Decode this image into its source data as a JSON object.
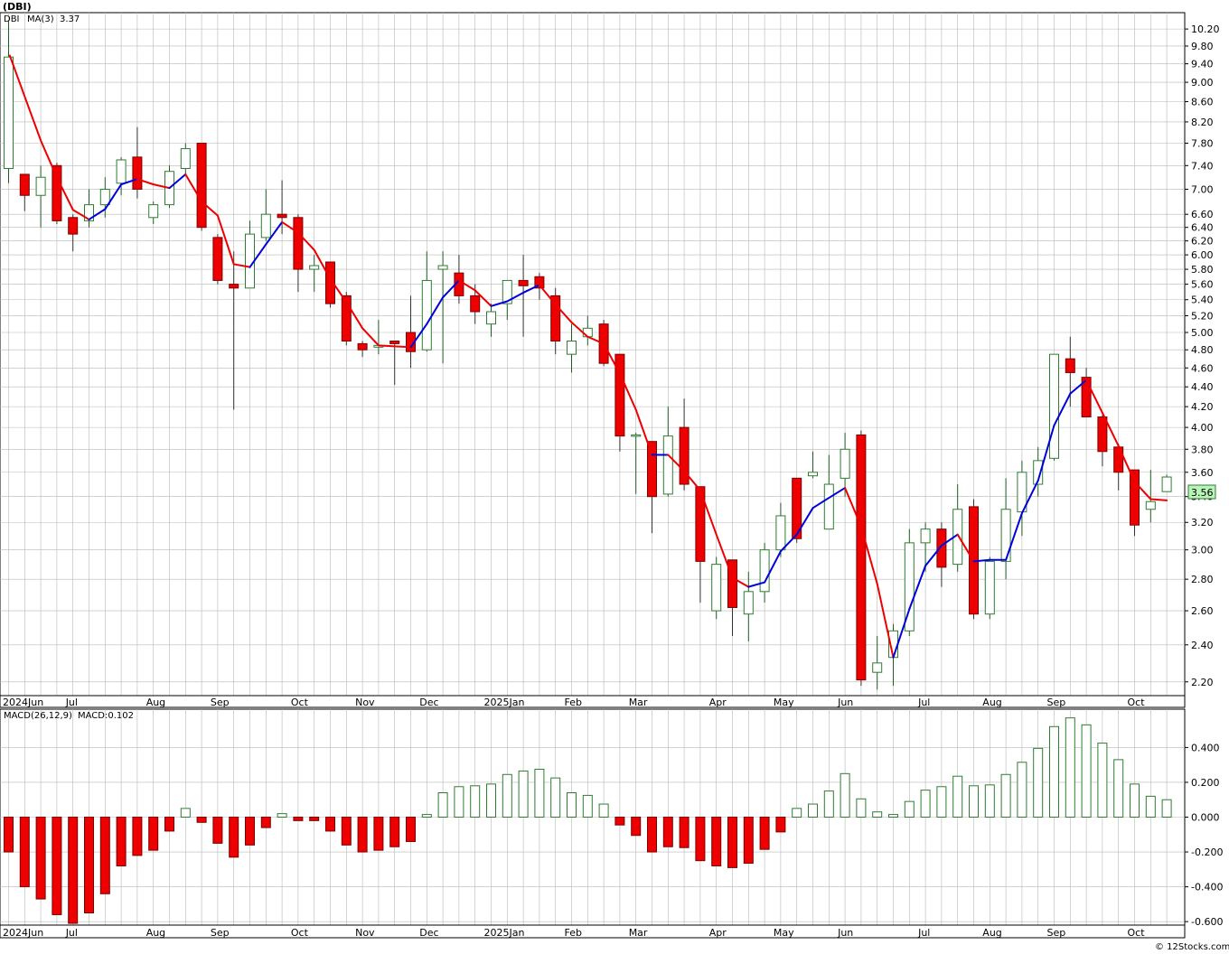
{
  "ticker_title": "(DBI)",
  "legend": {
    "symbol": "DBI",
    "ma_label": "MA(3)",
    "ma_value": "3.37",
    "macd_label": "MACD(26,12,9)",
    "macd_value": "MACD:0.102"
  },
  "last_price_tag": "3.56",
  "watermark": "© 12Stocks.com",
  "colors": {
    "up_candle": "#2e7d32",
    "down_candle": "#ee0000",
    "ma_up": "#0000dd",
    "ma_down": "#ee0000",
    "grid": "#b8b8b8",
    "price_tag": "#b9f5b9"
  },
  "chart_data": [
    {
      "type": "candlestick",
      "title": "(DBI)",
      "y_scale": "log",
      "ylim": [
        2.13,
        10.6
      ],
      "y_ticks": [
        "10.20",
        "9.80",
        "9.40",
        "9.00",
        "8.60",
        "8.20",
        "7.80",
        "7.40",
        "7.00",
        "6.60",
        "6.40",
        "6.20",
        "6.00",
        "5.80",
        "5.60",
        "5.40",
        "5.20",
        "5.00",
        "4.80",
        "4.60",
        "4.40",
        "4.20",
        "4.00",
        "3.80",
        "3.60",
        "3.40",
        "3.20",
        "3.00",
        "2.80",
        "2.60",
        "2.40",
        "2.20"
      ],
      "x_labels": [
        "2024Jun",
        "Jul",
        "Aug",
        "Sep",
        "Oct",
        "Nov",
        "Dec",
        "2025Jan",
        "Feb",
        "Mar",
        "Apr",
        "May",
        "Jun",
        "Jul",
        "Aug",
        "Sep",
        "Oct"
      ],
      "x_label_weeks": [
        0,
        4,
        9,
        13,
        18,
        22,
        26,
        30,
        35,
        39,
        44,
        48,
        52,
        57,
        61,
        65,
        70
      ],
      "candles": [
        {
          "o": 7.35,
          "h": 10.4,
          "l": 7.1,
          "c": 9.55
        },
        {
          "o": 7.25,
          "h": 7.25,
          "l": 6.65,
          "c": 6.9
        },
        {
          "o": 6.9,
          "h": 7.4,
          "l": 6.4,
          "c": 7.2
        },
        {
          "o": 7.4,
          "h": 7.45,
          "l": 6.45,
          "c": 6.5
        },
        {
          "o": 6.55,
          "h": 6.6,
          "l": 6.05,
          "c": 6.3
        },
        {
          "o": 6.5,
          "h": 7.0,
          "l": 6.4,
          "c": 6.75
        },
        {
          "o": 6.75,
          "h": 7.2,
          "l": 6.55,
          "c": 7.0
        },
        {
          "o": 7.1,
          "h": 7.55,
          "l": 6.9,
          "c": 7.5
        },
        {
          "o": 7.55,
          "h": 8.1,
          "l": 6.85,
          "c": 7.0
        },
        {
          "o": 6.55,
          "h": 6.8,
          "l": 6.45,
          "c": 6.75
        },
        {
          "o": 6.75,
          "h": 7.4,
          "l": 6.7,
          "c": 7.3
        },
        {
          "o": 7.35,
          "h": 7.8,
          "l": 7.25,
          "c": 7.7
        },
        {
          "o": 7.8,
          "h": 7.8,
          "l": 6.35,
          "c": 6.4
        },
        {
          "o": 6.25,
          "h": 6.3,
          "l": 5.6,
          "c": 5.65
        },
        {
          "o": 5.6,
          "h": 6.05,
          "l": 4.17,
          "c": 5.55
        },
        {
          "o": 5.55,
          "h": 6.5,
          "l": 5.55,
          "c": 6.3
        },
        {
          "o": 6.25,
          "h": 7.0,
          "l": 6.2,
          "c": 6.6
        },
        {
          "o": 6.6,
          "h": 7.15,
          "l": 6.3,
          "c": 6.55
        },
        {
          "o": 6.55,
          "h": 6.6,
          "l": 5.5,
          "c": 5.8
        },
        {
          "o": 5.8,
          "h": 6.0,
          "l": 5.5,
          "c": 5.85
        },
        {
          "o": 5.9,
          "h": 5.9,
          "l": 5.3,
          "c": 5.35
        },
        {
          "o": 5.45,
          "h": 5.5,
          "l": 4.85,
          "c": 4.9
        },
        {
          "o": 4.87,
          "h": 4.9,
          "l": 4.72,
          "c": 4.8
        },
        {
          "o": 4.83,
          "h": 5.15,
          "l": 4.75,
          "c": 4.85
        },
        {
          "o": 4.9,
          "h": 4.9,
          "l": 4.42,
          "c": 4.87
        },
        {
          "o": 5.0,
          "h": 5.45,
          "l": 4.6,
          "c": 4.78
        },
        {
          "o": 4.8,
          "h": 6.05,
          "l": 4.78,
          "c": 5.65
        },
        {
          "o": 5.8,
          "h": 6.05,
          "l": 4.65,
          "c": 5.85
        },
        {
          "o": 5.75,
          "h": 6.0,
          "l": 5.35,
          "c": 5.45
        },
        {
          "o": 5.45,
          "h": 5.6,
          "l": 5.1,
          "c": 5.25
        },
        {
          "o": 5.1,
          "h": 5.35,
          "l": 4.95,
          "c": 5.25
        },
        {
          "o": 5.35,
          "h": 5.65,
          "l": 5.15,
          "c": 5.65
        },
        {
          "o": 5.65,
          "h": 6.0,
          "l": 4.95,
          "c": 5.58
        },
        {
          "o": 5.7,
          "h": 5.75,
          "l": 5.4,
          "c": 5.55
        },
        {
          "o": 5.45,
          "h": 5.55,
          "l": 4.75,
          "c": 4.9
        },
        {
          "o": 4.75,
          "h": 5.1,
          "l": 4.55,
          "c": 4.9
        },
        {
          "o": 4.95,
          "h": 5.2,
          "l": 4.85,
          "c": 5.05
        },
        {
          "o": 5.1,
          "h": 5.15,
          "l": 4.62,
          "c": 4.65
        },
        {
          "o": 4.75,
          "h": 4.75,
          "l": 3.78,
          "c": 3.92
        },
        {
          "o": 3.92,
          "h": 3.95,
          "l": 3.42,
          "c": 3.93
        },
        {
          "o": 3.87,
          "h": 3.87,
          "l": 3.12,
          "c": 3.4
        },
        {
          "o": 3.42,
          "h": 4.2,
          "l": 3.4,
          "c": 3.92
        },
        {
          "o": 4.0,
          "h": 4.28,
          "l": 3.45,
          "c": 3.5
        },
        {
          "o": 3.48,
          "h": 3.48,
          "l": 2.65,
          "c": 2.92
        },
        {
          "o": 2.6,
          "h": 2.95,
          "l": 2.55,
          "c": 2.9
        },
        {
          "o": 2.93,
          "h": 2.93,
          "l": 2.45,
          "c": 2.62
        },
        {
          "o": 2.58,
          "h": 2.85,
          "l": 2.42,
          "c": 2.72
        },
        {
          "o": 2.72,
          "h": 3.05,
          "l": 2.65,
          "c": 3.0
        },
        {
          "o": 3.0,
          "h": 3.35,
          "l": 2.95,
          "c": 3.25
        },
        {
          "o": 3.55,
          "h": 3.55,
          "l": 3.05,
          "c": 3.08
        },
        {
          "o": 3.57,
          "h": 3.78,
          "l": 3.55,
          "c": 3.6
        },
        {
          "o": 3.15,
          "h": 3.75,
          "l": 3.15,
          "c": 3.5
        },
        {
          "o": 3.55,
          "h": 3.95,
          "l": 3.4,
          "c": 3.8
        },
        {
          "o": 3.93,
          "h": 3.97,
          "l": 2.18,
          "c": 2.21
        },
        {
          "o": 2.25,
          "h": 2.45,
          "l": 2.16,
          "c": 2.3
        },
        {
          "o": 2.33,
          "h": 2.52,
          "l": 2.18,
          "c": 2.48
        },
        {
          "o": 2.48,
          "h": 3.15,
          "l": 2.45,
          "c": 3.05
        },
        {
          "o": 3.05,
          "h": 3.2,
          "l": 2.85,
          "c": 3.15
        },
        {
          "o": 3.15,
          "h": 3.2,
          "l": 2.75,
          "c": 2.88
        },
        {
          "o": 2.9,
          "h": 3.5,
          "l": 2.85,
          "c": 3.3
        },
        {
          "o": 3.32,
          "h": 3.38,
          "l": 2.55,
          "c": 2.58
        },
        {
          "o": 2.58,
          "h": 2.95,
          "l": 2.55,
          "c": 2.92
        },
        {
          "o": 2.92,
          "h": 3.55,
          "l": 2.8,
          "c": 3.3
        },
        {
          "o": 3.28,
          "h": 3.7,
          "l": 3.1,
          "c": 3.6
        },
        {
          "o": 3.5,
          "h": 3.82,
          "l": 3.4,
          "c": 3.7
        },
        {
          "o": 3.72,
          "h": 4.75,
          "l": 3.7,
          "c": 4.75
        },
        {
          "o": 4.7,
          "h": 4.95,
          "l": 4.2,
          "c": 4.55
        },
        {
          "o": 4.5,
          "h": 4.6,
          "l": 4.1,
          "c": 4.1
        },
        {
          "o": 4.1,
          "h": 4.12,
          "l": 3.65,
          "c": 3.78
        },
        {
          "o": 3.82,
          "h": 3.85,
          "l": 3.45,
          "c": 3.6
        },
        {
          "o": 3.62,
          "h": 3.62,
          "l": 3.1,
          "c": 3.18
        },
        {
          "o": 3.3,
          "h": 3.62,
          "l": 3.2,
          "c": 3.36
        },
        {
          "o": 3.44,
          "h": 3.58,
          "l": 3.44,
          "c": 3.56
        }
      ],
      "ma3": [
        null,
        null,
        7.85,
        7.2,
        6.67,
        6.52,
        6.68,
        7.08,
        7.17,
        7.08,
        7.02,
        7.25,
        6.8,
        6.58,
        5.87,
        5.83,
        6.15,
        6.48,
        6.32,
        6.07,
        5.67,
        5.37,
        5.05,
        4.85,
        4.84,
        4.83,
        5.1,
        5.43,
        5.65,
        5.52,
        5.32,
        5.38,
        5.49,
        5.59,
        5.34,
        5.12,
        4.95,
        4.87,
        4.54,
        4.17,
        3.75,
        3.75,
        3.61,
        3.45,
        3.11,
        2.81,
        2.75,
        2.78,
        2.99,
        3.11,
        3.31,
        3.39,
        3.47,
        3.17,
        2.77,
        2.33,
        2.61,
        2.89,
        3.03,
        3.11,
        2.92,
        2.93,
        2.93,
        3.27,
        3.53,
        4.02,
        4.33,
        4.47,
        4.14,
        3.83,
        3.52,
        3.38,
        3.37
      ],
      "ma3_last_label": "3.37"
    },
    {
      "type": "bar",
      "title": "MACD(26,12,9)",
      "ylim": [
        -0.62,
        0.62
      ],
      "y_ticks": [
        "0.400",
        "0.200",
        "0.000",
        "-0.200",
        "-0.400",
        "-0.600"
      ],
      "x_labels": [
        "2024Jun",
        "Jul",
        "Aug",
        "Sep",
        "Oct",
        "Nov",
        "Dec",
        "2025Jan",
        "Feb",
        "Mar",
        "Apr",
        "May",
        "Jun",
        "Jul",
        "Aug",
        "Sep",
        "Oct"
      ],
      "values": [
        -0.2,
        -0.4,
        -0.47,
        -0.56,
        -0.61,
        -0.55,
        -0.44,
        -0.28,
        -0.22,
        -0.19,
        -0.08,
        0.05,
        -0.03,
        -0.15,
        -0.23,
        -0.16,
        -0.06,
        0.02,
        -0.02,
        -0.02,
        -0.08,
        -0.16,
        -0.2,
        -0.19,
        -0.17,
        -0.14,
        0.015,
        0.14,
        0.175,
        0.18,
        0.19,
        0.245,
        0.265,
        0.275,
        0.225,
        0.14,
        0.125,
        0.075,
        -0.045,
        -0.105,
        -0.2,
        -0.17,
        -0.175,
        -0.25,
        -0.28,
        -0.29,
        -0.265,
        -0.185,
        -0.085,
        0.05,
        0.075,
        0.15,
        0.25,
        0.105,
        0.03,
        0.015,
        0.09,
        0.155,
        0.175,
        0.235,
        0.18,
        0.185,
        0.245,
        0.315,
        0.395,
        0.52,
        0.57,
        0.53,
        0.425,
        0.33,
        0.19,
        0.12,
        0.1
      ],
      "value_label": "MACD:0.102"
    }
  ]
}
